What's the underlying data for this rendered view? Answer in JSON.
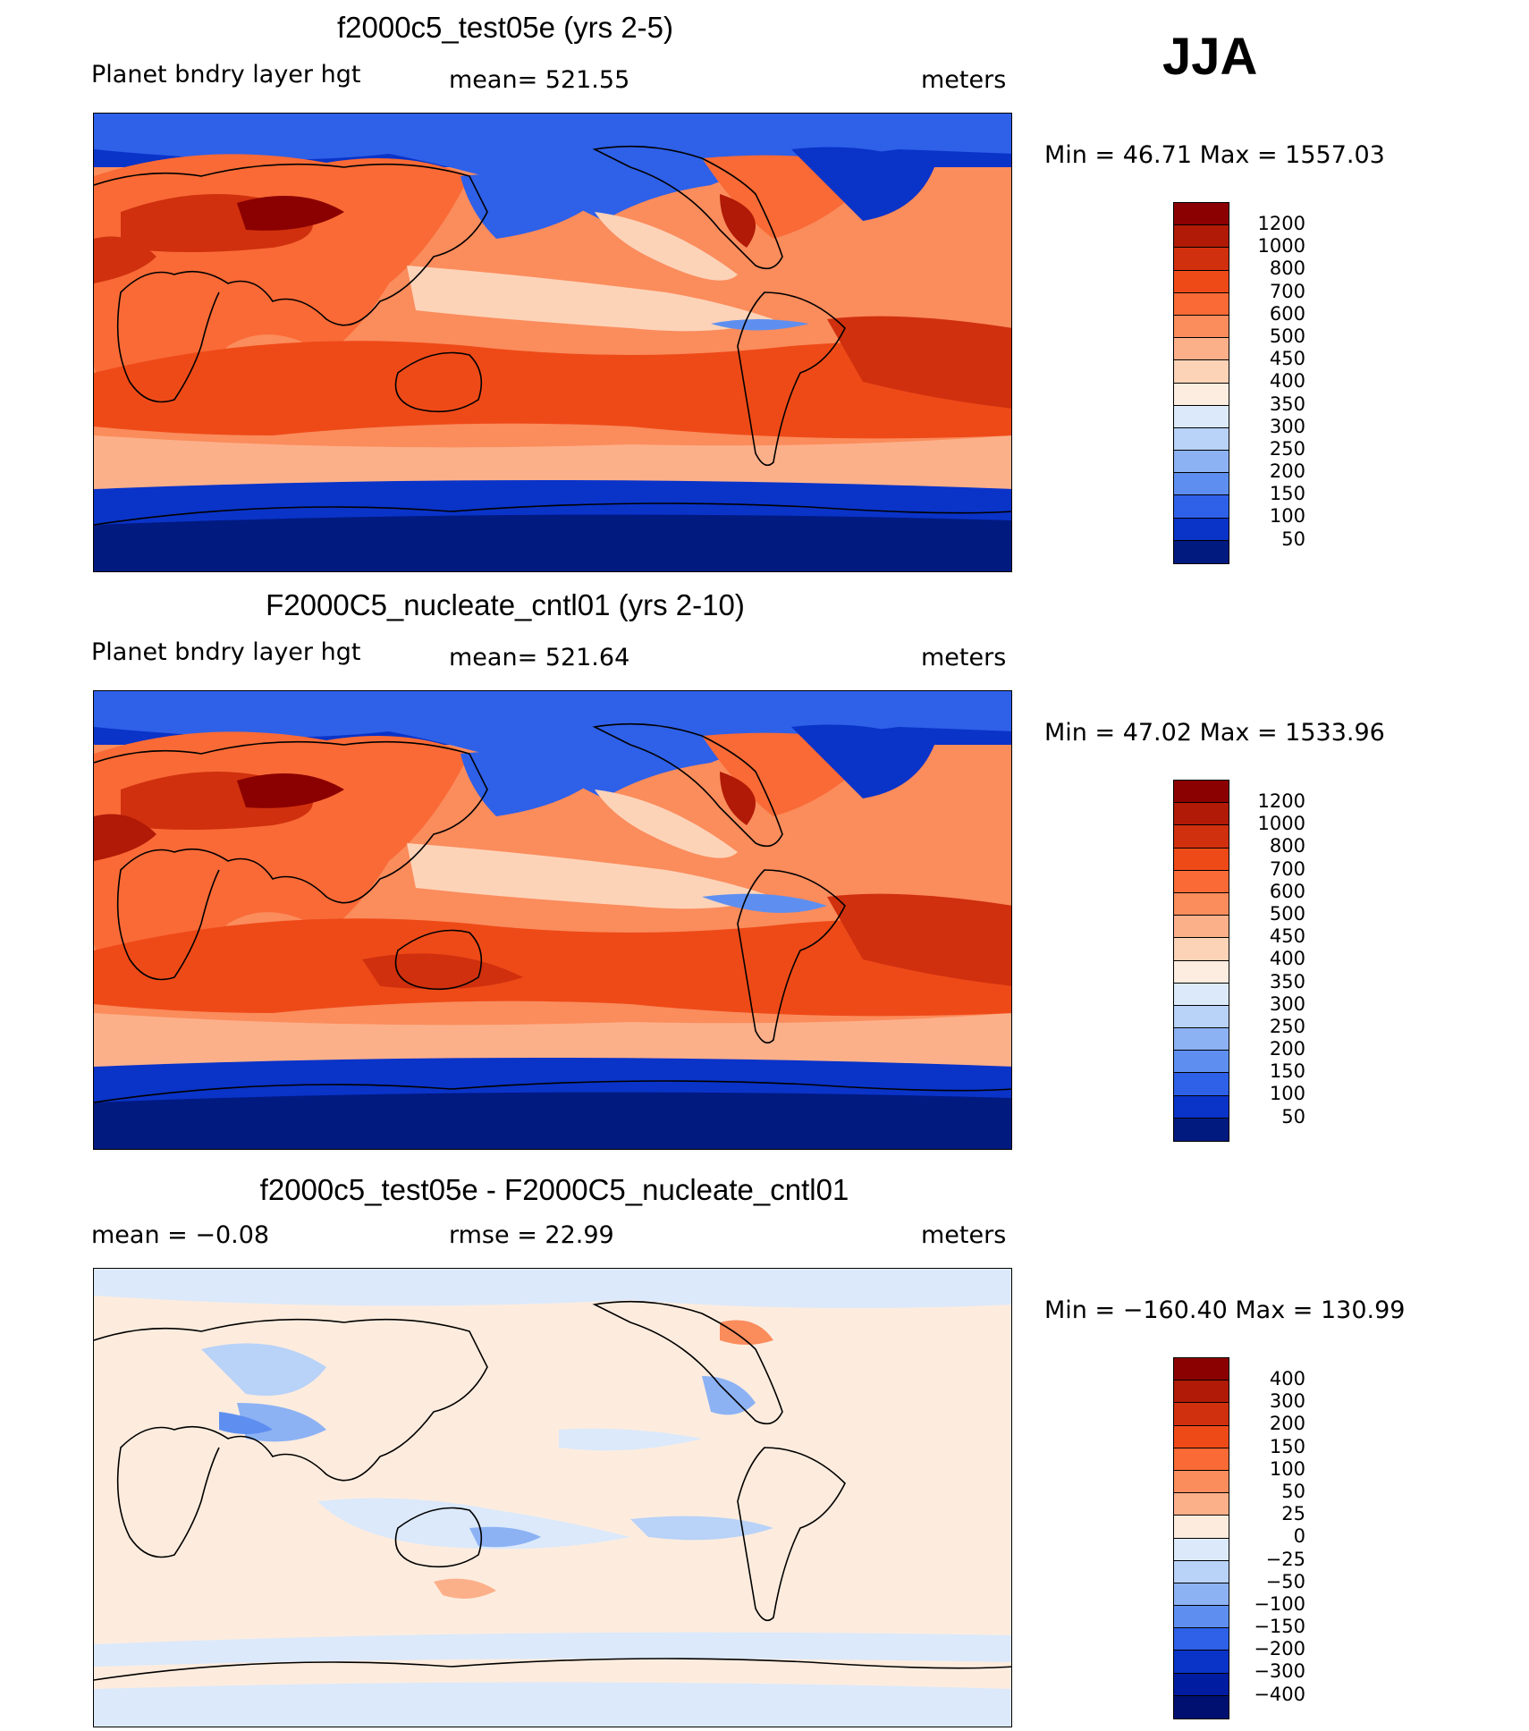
{
  "season": "JJA",
  "units": "meters",
  "variable": "Planet bndry layer hgt",
  "panels": [
    {
      "title": "f2000c5_test05e (yrs 2-5)",
      "left_label": "Planet bndry layer hgt",
      "center_label": "mean= 521.55",
      "right_label": "meters",
      "stats": "Min =   46.71 Max = 1557.03"
    },
    {
      "title": "F2000C5_nucleate_cntl01 (yrs 2-10)",
      "left_label": "Planet bndry layer hgt",
      "center_label": "mean= 521.64",
      "right_label": "meters",
      "stats": "Min =   47.02 Max = 1533.96"
    },
    {
      "title": "f2000c5_test05e - F2000C5_nucleate_cntl01",
      "left_label": "mean =   −0.08",
      "center_label": "rmse =    22.99",
      "right_label": "meters",
      "stats": "Min = −160.40 Max = 130.99"
    }
  ],
  "colorbar_abs": {
    "labels": [
      "1200",
      "1000",
      "800",
      "700",
      "600",
      "500",
      "450",
      "400",
      "350",
      "300",
      "250",
      "200",
      "150",
      "100",
      "50"
    ],
    "colors": [
      "#8b0000",
      "#b01a06",
      "#d0300e",
      "#ee4a18",
      "#f96a36",
      "#fb8c5c",
      "#fcb08a",
      "#fdd3b8",
      "#fdece0",
      "#dbe9fb",
      "#b8d2f8",
      "#8cb2f4",
      "#5e8ff0",
      "#2e60e8",
      "#0a33c8",
      "#001a80"
    ]
  },
  "colorbar_diff": {
    "labels": [
      "400",
      "300",
      "200",
      "150",
      "100",
      "50",
      "25",
      "0",
      "−25",
      "−50",
      "−100",
      "−150",
      "−200",
      "−300",
      "−400"
    ],
    "colors": [
      "#8b0000",
      "#b01a06",
      "#d0300e",
      "#ee4a18",
      "#f96a36",
      "#fb8c5c",
      "#fcb08a",
      "#fdecde",
      "#dbe9fb",
      "#b8d2f8",
      "#8cb2f4",
      "#5e8ff0",
      "#2e60e8",
      "#0a33c8",
      "#001ca0",
      "#001070"
    ]
  },
  "chart_data": [
    {
      "type": "heatmap",
      "title": "f2000c5_test05e (yrs 2-5)",
      "variable": "Planet bndry layer hgt",
      "units": "meters",
      "mean": 521.55,
      "min": 46.71,
      "max": 1557.03,
      "contour_levels": [
        50,
        100,
        150,
        200,
        250,
        300,
        350,
        400,
        450,
        500,
        600,
        700,
        800,
        1000,
        1200
      ]
    },
    {
      "type": "heatmap",
      "title": "F2000C5_nucleate_cntl01 (yrs 2-10)",
      "variable": "Planet bndry layer hgt",
      "units": "meters",
      "mean": 521.64,
      "min": 47.02,
      "max": 1533.96,
      "contour_levels": [
        50,
        100,
        150,
        200,
        250,
        300,
        350,
        400,
        450,
        500,
        600,
        700,
        800,
        1000,
        1200
      ]
    },
    {
      "type": "heatmap",
      "title": "f2000c5_test05e - F2000C5_nucleate_cntl01",
      "units": "meters",
      "mean": -0.08,
      "rmse": 22.99,
      "min": -160.4,
      "max": 130.99,
      "contour_levels": [
        -400,
        -300,
        -200,
        -150,
        -100,
        -50,
        -25,
        0,
        25,
        50,
        100,
        150,
        200,
        300,
        400
      ]
    }
  ]
}
